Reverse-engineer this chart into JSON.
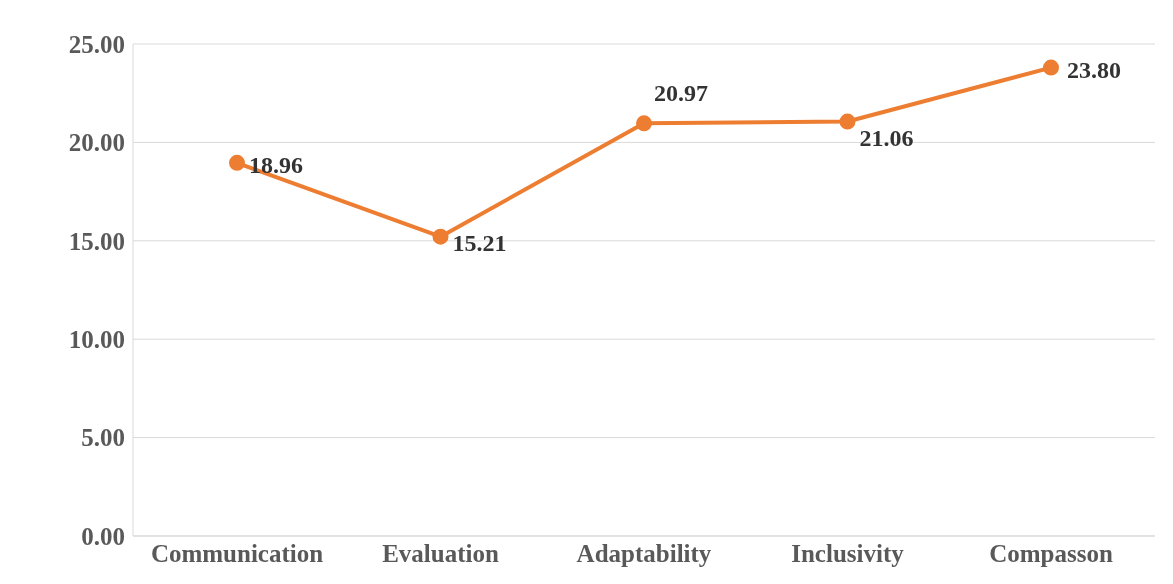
{
  "chart_data": {
    "type": "line",
    "categories": [
      "Communication",
      "Evaluation",
      "Adaptability",
      "Inclusivity",
      "Compasson"
    ],
    "series": [
      {
        "color": "#ed7d31",
        "values": [
          18.96,
          15.21,
          20.97,
          21.06,
          23.8
        ],
        "value_labels": [
          "18.96",
          "15.21",
          "20.97",
          "21.06",
          "23.80"
        ]
      }
    ],
    "ylim": [
      0,
      25
    ],
    "yticks": [
      {
        "value": 0,
        "label": "0.00"
      },
      {
        "value": 5,
        "label": "5.00"
      },
      {
        "value": 10,
        "label": "10.00"
      },
      {
        "value": 15,
        "label": "15.00"
      },
      {
        "value": 20,
        "label": "20.00"
      },
      {
        "value": 25,
        "label": "25.00"
      }
    ],
    "grid": "y",
    "legend": false,
    "marker": "circle",
    "line_style": "solid"
  }
}
